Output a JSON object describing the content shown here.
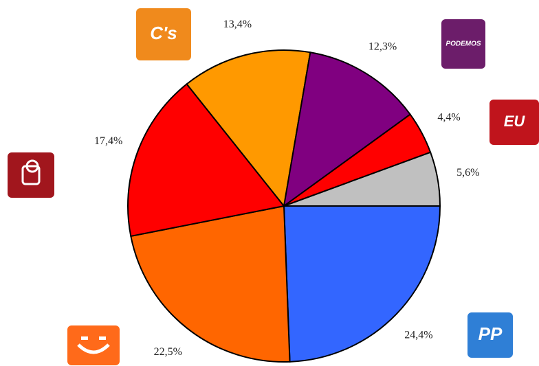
{
  "chart_data": {
    "type": "pie",
    "categories": [
      "PP",
      null,
      null,
      "C's",
      "PODEMOS",
      "EU",
      null
    ],
    "values": [
      24.4,
      22.5,
      17.4,
      13.4,
      12.3,
      4.4,
      5.6
    ],
    "value_labels": [
      "24,4%",
      "22,5%",
      "17,4%",
      "13,4%",
      "12,3%",
      "4,4%",
      "5,6%"
    ],
    "colors": [
      "#3366ff",
      "#ff6600",
      "#ff0000",
      "#ff9900",
      "#800080",
      "#ff0000",
      "#c0c0c0"
    ]
  }
}
